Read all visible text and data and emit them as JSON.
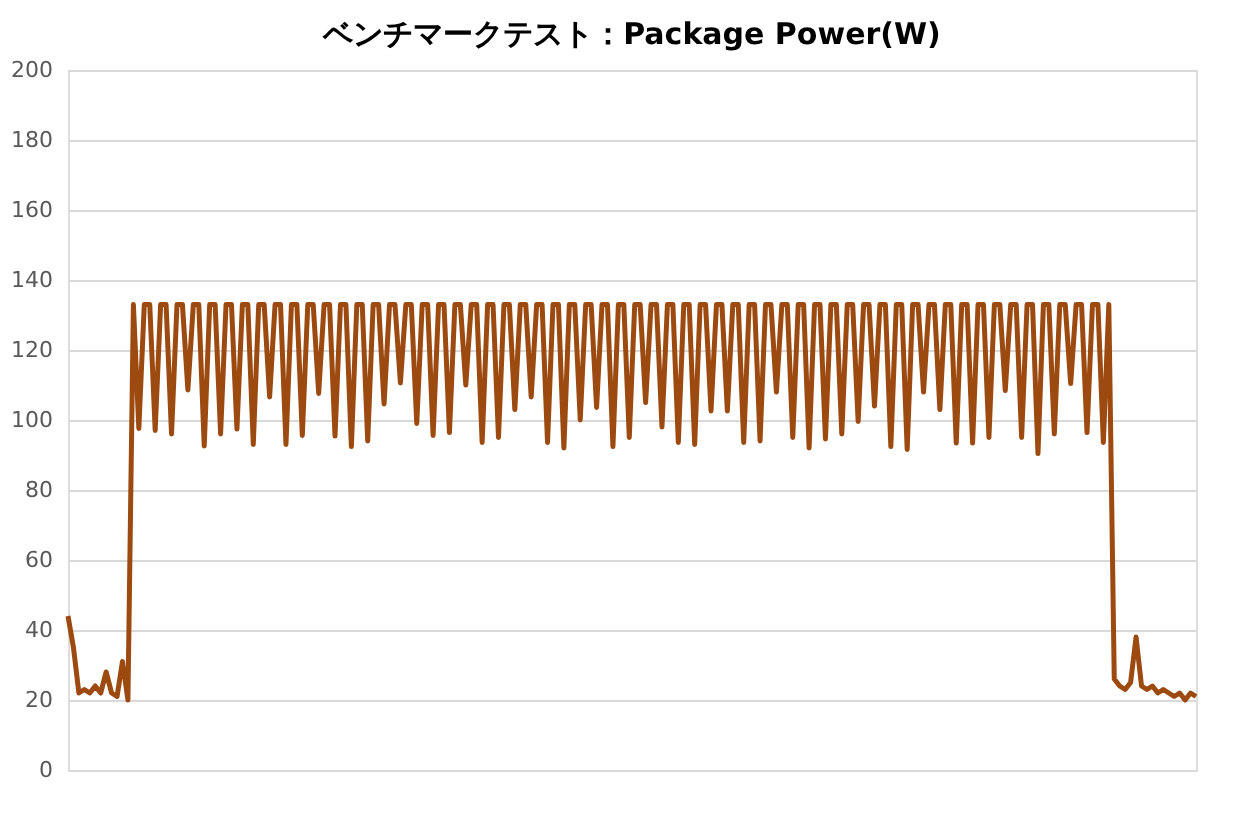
{
  "chart_data": {
    "type": "line",
    "title": "ベンチマークテスト：Package Power(W)",
    "categories": [
      null,
      null,
      null,
      null,
      null,
      null,
      null,
      null,
      null,
      null,
      null,
      null,
      null,
      null,
      null,
      null,
      null,
      null,
      null,
      null,
      null,
      null,
      null,
      null,
      null,
      null,
      null,
      null,
      null,
      null,
      null,
      null,
      null,
      null,
      null,
      null,
      null,
      null,
      null,
      null,
      null,
      null,
      null,
      null,
      null,
      null,
      null,
      null,
      null,
      null,
      null,
      null,
      null,
      null,
      null,
      null,
      null,
      null,
      null,
      null,
      null,
      null,
      null,
      null,
      null,
      null,
      null,
      null,
      null,
      null,
      null,
      null,
      null,
      null,
      null,
      null,
      null,
      null,
      null,
      null,
      null,
      null,
      null,
      null,
      null,
      null,
      null,
      null,
      null,
      null,
      null,
      null,
      null,
      null,
      null,
      null,
      null,
      null,
      null,
      null,
      null,
      null,
      null,
      null,
      null,
      null,
      null,
      null,
      null,
      null,
      null,
      null,
      null,
      null,
      null,
      null,
      null,
      null,
      null,
      null,
      null,
      null,
      null,
      null,
      null,
      null,
      null,
      null,
      null,
      null,
      null,
      null,
      null,
      null,
      null,
      null,
      null,
      null,
      null,
      null,
      null,
      null,
      null,
      null,
      null,
      null,
      null,
      null,
      null,
      null,
      null,
      null,
      null,
      null,
      null,
      null,
      null,
      null,
      null,
      null,
      null,
      null,
      null,
      null,
      null,
      null,
      null,
      null,
      null,
      null,
      null,
      null,
      null,
      null,
      null,
      null,
      null,
      null,
      null,
      null,
      null,
      null,
      null,
      null,
      null,
      null,
      null,
      null,
      null,
      null,
      null,
      null,
      null,
      null,
      null,
      null,
      null,
      null,
      null,
      null,
      null,
      null,
      null,
      null,
      null,
      null,
      null,
      null
    ],
    "series": [
      {
        "color": "#9c4a10",
        "values": [
          44,
          35,
          22,
          23,
          22,
          24,
          22,
          28,
          22,
          21,
          31,
          20,
          133,
          97.6,
          133,
          133,
          97,
          133,
          133,
          96,
          133,
          133,
          108.6,
          133,
          133,
          92.6,
          133,
          133,
          96,
          133,
          133,
          97.4,
          133,
          133,
          93,
          133,
          133,
          106.6,
          133,
          133,
          93,
          133,
          133,
          95.6,
          133,
          133,
          107.6,
          133,
          133,
          95.4,
          133,
          133,
          92.4,
          133,
          133,
          94,
          133,
          133,
          104.6,
          133,
          133,
          110.6,
          133,
          133,
          99,
          133,
          133,
          95.6,
          133,
          133,
          96.4,
          133,
          133,
          110,
          133,
          133,
          93.6,
          133,
          133,
          95,
          133,
          133,
          103,
          133,
          133,
          106.6,
          133,
          133,
          93.6,
          133,
          133,
          92,
          133,
          133,
          100,
          133,
          133,
          103.6,
          133,
          133,
          92.4,
          133,
          133,
          95,
          133,
          133,
          105,
          133,
          133,
          98,
          133,
          133,
          93.6,
          133,
          133,
          93,
          133,
          133,
          102.6,
          133,
          133,
          102.6,
          133,
          133,
          93.6,
          133,
          133,
          94,
          133,
          133,
          108,
          133,
          133,
          95,
          133,
          133,
          92,
          133,
          133,
          94.6,
          133,
          133,
          96,
          133,
          133,
          99.6,
          133,
          133,
          104,
          133,
          133,
          92.4,
          133,
          133,
          91.6,
          133,
          133,
          108,
          133,
          133,
          103,
          133,
          133,
          93.4,
          133,
          133,
          93.4,
          133,
          133,
          95,
          133,
          133,
          108.4,
          133,
          133,
          95,
          133,
          133,
          90.4,
          133,
          133,
          96,
          133,
          133,
          110.4,
          133,
          133,
          96.4,
          133,
          133,
          93.6,
          133,
          26,
          24,
          23,
          25,
          38,
          24,
          23,
          24,
          22,
          23,
          22,
          21,
          22,
          20,
          22,
          21
        ]
      }
    ],
    "ylim": [
      0,
      200
    ],
    "yticks": [
      0,
      20,
      40,
      60,
      80,
      100,
      120,
      140,
      160,
      180,
      200
    ],
    "grid": "y",
    "tick_labels": "y",
    "marker": "none",
    "line_style": "solid",
    "legend": false
  }
}
